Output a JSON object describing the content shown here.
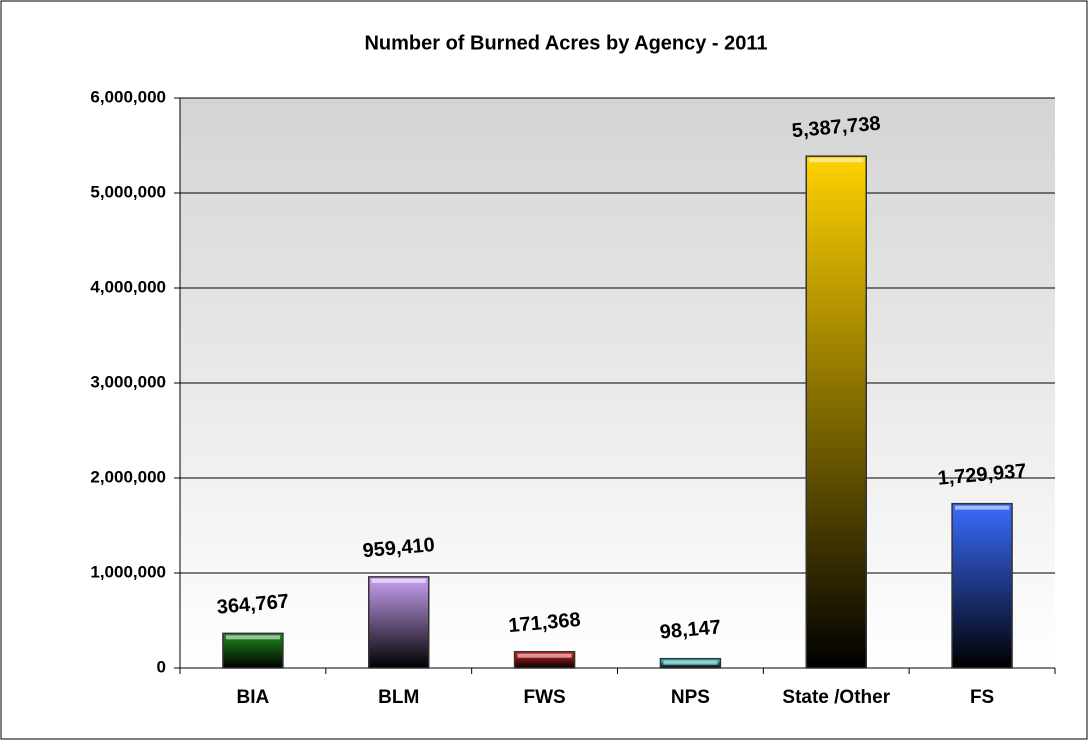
{
  "chart_data": {
    "type": "bar",
    "title": "Number of Burned Acres by Agency - 2011",
    "categories": [
      "BIA",
      "BLM",
      "FWS",
      "NPS",
      "State /Other",
      "FS"
    ],
    "values": [
      364767,
      959410,
      171368,
      98147,
      5387738,
      1729937
    ],
    "value_labels": [
      "364,767",
      "959,410",
      "171,368",
      "98,147",
      "5,387,738",
      "1,729,937"
    ],
    "colors": [
      "#1f8a1f",
      "#c9a2f5",
      "#e02424",
      "#38e6e6",
      "#ffd200",
      "#3a6cff"
    ],
    "ylim": [
      0,
      6000000
    ],
    "yticks": [
      {
        "value": 0,
        "label": "0"
      },
      {
        "value": 1000000,
        "label": "1,000,000"
      },
      {
        "value": 2000000,
        "label": "2,000,000"
      },
      {
        "value": 3000000,
        "label": "3,000,000"
      },
      {
        "value": 4000000,
        "label": "4,000,000"
      },
      {
        "value": 5000000,
        "label": "5,000,000"
      },
      {
        "value": 6000000,
        "label": "6,000,000"
      }
    ],
    "grid": true
  }
}
